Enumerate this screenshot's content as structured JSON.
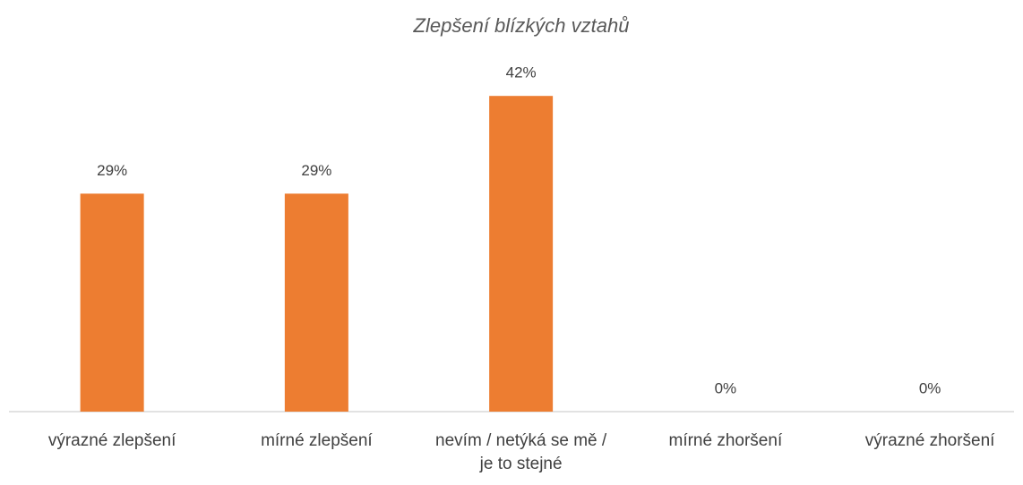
{
  "chart_data": {
    "type": "bar",
    "title": "Zlepšení blízkých vztahů",
    "categories": [
      "výrazné zlepšení",
      "mírné zlepšení",
      "nevím / netýká se mě / je to stejné",
      "mírné zhoršení",
      "výrazné zhoršení"
    ],
    "values": [
      29,
      29,
      42,
      0,
      0
    ],
    "value_labels": [
      "29%",
      "29%",
      "42%",
      "0%",
      "0%"
    ],
    "color": "#ed7d31",
    "ylim": [
      0,
      50
    ]
  }
}
